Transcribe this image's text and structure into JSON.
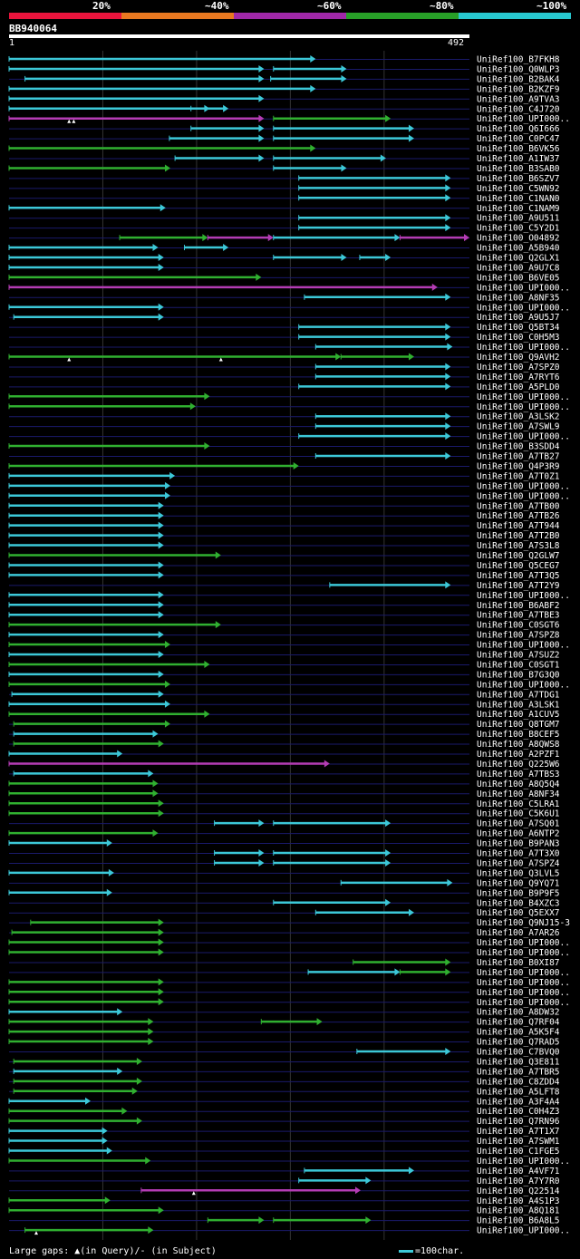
{
  "legend": {
    "segments": [
      {
        "label": "20%",
        "color": "#e8143c"
      },
      {
        "label": "~40%",
        "color": "#e87820"
      },
      {
        "label": "~60%",
        "color": "#a028a8"
      },
      {
        "label": "~80%",
        "color": "#28a028"
      },
      {
        "label": "~100%",
        "color": "#28c8d0"
      }
    ]
  },
  "query": {
    "id": "BB940064",
    "start": "1",
    "end": "492",
    "length": 492
  },
  "colors": {
    "cyan": "#3cc8d8",
    "green": "#30b030",
    "magenta": "#b43cb4",
    "grid": "#333"
  },
  "hits": [
    {
      "name": "UniRef100_B7FKH8",
      "segs": [
        [
          1,
          328,
          "c"
        ]
      ]
    },
    {
      "name": "UniRef100_Q0WLP3",
      "segs": [
        [
          1,
          273,
          "c"
        ],
        [
          283,
          361,
          "c"
        ]
      ]
    },
    {
      "name": "UniRef100_B2BAK4",
      "segs": [
        [
          18,
          273,
          "c"
        ],
        [
          280,
          361,
          "c"
        ]
      ]
    },
    {
      "name": "UniRef100_B2KZF9",
      "segs": [
        [
          1,
          328,
          "c"
        ]
      ]
    },
    {
      "name": "UniRef100_A9TVA3",
      "segs": [
        [
          1,
          273,
          "c"
        ]
      ]
    },
    {
      "name": "UniRef100_C4J720",
      "segs": [
        [
          1,
          215,
          "c"
        ],
        [
          195,
          235,
          "c"
        ]
      ]
    },
    {
      "name": "UniRef100_UPI000..",
      "segs": [
        [
          1,
          273,
          "m"
        ],
        [
          283,
          408,
          "g"
        ]
      ],
      "gaps": [
        65,
        70
      ]
    },
    {
      "name": "UniRef100_Q6I666",
      "segs": [
        [
          195,
          273,
          "c"
        ],
        [
          283,
          433,
          "c"
        ]
      ]
    },
    {
      "name": "UniRef100_C0PC47",
      "segs": [
        [
          172,
          273,
          "c"
        ],
        [
          283,
          433,
          "c"
        ]
      ]
    },
    {
      "name": "UniRef100_B6VK56",
      "segs": [
        [
          1,
          328,
          "g"
        ]
      ]
    },
    {
      "name": "UniRef100_A1IW37",
      "segs": [
        [
          178,
          273,
          "c"
        ],
        [
          283,
          403,
          "c"
        ]
      ]
    },
    {
      "name": "UniRef100_B3SAB0",
      "segs": [
        [
          1,
          173,
          "g"
        ],
        [
          283,
          361,
          "c"
        ]
      ]
    },
    {
      "name": "UniRef100_B6SZV7",
      "segs": [
        [
          310,
          472,
          "c"
        ]
      ]
    },
    {
      "name": "UniRef100_C5WN92",
      "segs": [
        [
          310,
          472,
          "c"
        ]
      ]
    },
    {
      "name": "UniRef100_C1NAN0",
      "segs": [
        [
          310,
          472,
          "c"
        ]
      ]
    },
    {
      "name": "UniRef100_C1NAM9",
      "segs": [
        [
          1,
          168,
          "c"
        ]
      ]
    },
    {
      "name": "UniRef100_A9U511",
      "segs": [
        [
          310,
          472,
          "c"
        ]
      ]
    },
    {
      "name": "UniRef100_C5Y2D1",
      "segs": [
        [
          310,
          472,
          "c"
        ]
      ]
    },
    {
      "name": "UniRef100_O04892",
      "segs": [
        [
          119,
          213,
          "g"
        ],
        [
          213,
          283,
          "m"
        ],
        [
          283,
          418,
          "c"
        ],
        [
          418,
          492,
          "m"
        ]
      ]
    },
    {
      "name": "UniRef100_A5B940",
      "segs": [
        [
          1,
          160,
          "c"
        ],
        [
          188,
          235,
          "c"
        ]
      ]
    },
    {
      "name": "UniRef100_Q2GLX1",
      "segs": [
        [
          1,
          166,
          "c"
        ],
        [
          283,
          361,
          "c"
        ],
        [
          375,
          408,
          "c"
        ]
      ]
    },
    {
      "name": "UniRef100_A9U7C8",
      "segs": [
        [
          1,
          166,
          "c"
        ]
      ]
    },
    {
      "name": "UniRef100_B6VE05",
      "segs": [
        [
          1,
          270,
          "g"
        ]
      ]
    },
    {
      "name": "UniRef100_UPI000..",
      "segs": [
        [
          1,
          458,
          "m"
        ]
      ]
    },
    {
      "name": "UniRef100_A8NF35",
      "segs": [
        [
          316,
          472,
          "c"
        ]
      ]
    },
    {
      "name": "UniRef100_UPI000..",
      "segs": [
        [
          1,
          166,
          "c"
        ]
      ]
    },
    {
      "name": "UniRef100_A9U5J7",
      "segs": [
        [
          6,
          166,
          "c"
        ]
      ]
    },
    {
      "name": "UniRef100_Q5BT34",
      "segs": [
        [
          310,
          472,
          "c"
        ]
      ]
    },
    {
      "name": "UniRef100_C0H5M3",
      "segs": [
        [
          310,
          472,
          "c"
        ]
      ]
    },
    {
      "name": "UniRef100_UPI000..",
      "segs": [
        [
          328,
          474,
          "c"
        ]
      ]
    },
    {
      "name": "UniRef100_Q9AVH2",
      "segs": [
        [
          1,
          355,
          "g"
        ],
        [
          355,
          433,
          "g"
        ]
      ],
      "gaps": [
        65,
        227
      ]
    },
    {
      "name": "UniRef100_A7SPZ0",
      "segs": [
        [
          328,
          472,
          "c"
        ]
      ]
    },
    {
      "name": "UniRef100_A7RYT6",
      "segs": [
        [
          328,
          472,
          "c"
        ]
      ]
    },
    {
      "name": "UniRef100_A5PLD0",
      "segs": [
        [
          310,
          472,
          "c"
        ]
      ]
    },
    {
      "name": "UniRef100_UPI000..",
      "segs": [
        [
          1,
          215,
          "g"
        ]
      ]
    },
    {
      "name": "UniRef100_UPI000..",
      "segs": [
        [
          1,
          200,
          "g"
        ]
      ]
    },
    {
      "name": "UniRef100_A3LSK2",
      "segs": [
        [
          328,
          472,
          "c"
        ]
      ]
    },
    {
      "name": "UniRef100_A7SWL9",
      "segs": [
        [
          328,
          472,
          "c"
        ]
      ]
    },
    {
      "name": "UniRef100_UPI000..",
      "segs": [
        [
          310,
          472,
          "c"
        ]
      ]
    },
    {
      "name": "UniRef100_B3SDD4",
      "segs": [
        [
          1,
          215,
          "g"
        ]
      ]
    },
    {
      "name": "UniRef100_A7TB27",
      "segs": [
        [
          328,
          472,
          "c"
        ]
      ]
    },
    {
      "name": "UniRef100_Q4P3R9",
      "segs": [
        [
          1,
          310,
          "g"
        ]
      ]
    },
    {
      "name": "UniRef100_A7T0Z1",
      "segs": [
        [
          1,
          178,
          "c"
        ]
      ]
    },
    {
      "name": "UniRef100_UPI000..",
      "segs": [
        [
          1,
          173,
          "c"
        ]
      ]
    },
    {
      "name": "UniRef100_UPI000..",
      "segs": [
        [
          1,
          173,
          "c"
        ]
      ]
    },
    {
      "name": "UniRef100_A7TB00",
      "segs": [
        [
          1,
          166,
          "c"
        ]
      ]
    },
    {
      "name": "UniRef100_A7TB26",
      "segs": [
        [
          1,
          166,
          "c"
        ]
      ]
    },
    {
      "name": "UniRef100_A7T944",
      "segs": [
        [
          1,
          166,
          "c"
        ]
      ]
    },
    {
      "name": "UniRef100_A7T2B0",
      "segs": [
        [
          1,
          166,
          "c"
        ]
      ]
    },
    {
      "name": "UniRef100_A7S3L8",
      "segs": [
        [
          1,
          166,
          "c"
        ]
      ]
    },
    {
      "name": "UniRef100_Q2GLW7",
      "segs": [
        [
          1,
          227,
          "g"
        ]
      ]
    },
    {
      "name": "UniRef100_Q5CEG7",
      "segs": [
        [
          1,
          166,
          "c"
        ]
      ]
    },
    {
      "name": "UniRef100_A7T3Q5",
      "segs": [
        [
          1,
          166,
          "c"
        ]
      ]
    },
    {
      "name": "UniRef100_A7T2Y9",
      "segs": [
        [
          343,
          472,
          "c"
        ]
      ]
    },
    {
      "name": "UniRef100_UPI000..",
      "segs": [
        [
          1,
          166,
          "c"
        ]
      ]
    },
    {
      "name": "UniRef100_B6ABF2",
      "segs": [
        [
          1,
          166,
          "c"
        ]
      ]
    },
    {
      "name": "UniRef100_A7TBE3",
      "segs": [
        [
          1,
          166,
          "c"
        ]
      ]
    },
    {
      "name": "UniRef100_C0SGT6",
      "segs": [
        [
          1,
          227,
          "g"
        ]
      ]
    },
    {
      "name": "UniRef100_A7SPZ8",
      "segs": [
        [
          1,
          166,
          "c"
        ]
      ]
    },
    {
      "name": "UniRef100_UPI000..",
      "segs": [
        [
          1,
          173,
          "g"
        ]
      ]
    },
    {
      "name": "UniRef100_A7SUZ2",
      "segs": [
        [
          1,
          166,
          "c"
        ]
      ]
    },
    {
      "name": "UniRef100_C0SGT1",
      "segs": [
        [
          1,
          215,
          "g"
        ]
      ]
    },
    {
      "name": "UniRef100_B7G3Q0",
      "segs": [
        [
          1,
          166,
          "c"
        ]
      ]
    },
    {
      "name": "UniRef100_UPI000..",
      "segs": [
        [
          1,
          173,
          "g"
        ]
      ]
    },
    {
      "name": "UniRef100_A7TDG1",
      "segs": [
        [
          4,
          166,
          "c"
        ]
      ]
    },
    {
      "name": "UniRef100_A3LSK1",
      "segs": [
        [
          1,
          173,
          "c"
        ]
      ]
    },
    {
      "name": "UniRef100_A1CUV5",
      "segs": [
        [
          1,
          215,
          "g"
        ]
      ]
    },
    {
      "name": "UniRef100_Q8TGM7",
      "segs": [
        [
          6,
          173,
          "g"
        ]
      ]
    },
    {
      "name": "UniRef100_B8CEF5",
      "segs": [
        [
          6,
          160,
          "c"
        ]
      ]
    },
    {
      "name": "UniRef100_A8QWS8",
      "segs": [
        [
          6,
          166,
          "g"
        ]
      ]
    },
    {
      "name": "UniRef100_A2PZF1",
      "segs": [
        [
          1,
          122,
          "c"
        ]
      ]
    },
    {
      "name": "UniRef100_Q225W6",
      "segs": [
        [
          1,
          343,
          "m"
        ]
      ]
    },
    {
      "name": "UniRef100_A7TBS3",
      "segs": [
        [
          6,
          155,
          "c"
        ]
      ]
    },
    {
      "name": "UniRef100_A8Q5Q4",
      "segs": [
        [
          1,
          160,
          "g"
        ]
      ]
    },
    {
      "name": "UniRef100_A8NF34",
      "segs": [
        [
          1,
          160,
          "g"
        ]
      ]
    },
    {
      "name": "UniRef100_C5LRA1",
      "segs": [
        [
          1,
          166,
          "g"
        ]
      ]
    },
    {
      "name": "UniRef100_C5K6U1",
      "segs": [
        [
          1,
          166,
          "g"
        ]
      ]
    },
    {
      "name": "UniRef100_A7SQ01",
      "segs": [
        [
          220,
          273,
          "c"
        ],
        [
          283,
          408,
          "c"
        ]
      ]
    },
    {
      "name": "UniRef100_A6NTP2",
      "segs": [
        [
          1,
          160,
          "g"
        ]
      ]
    },
    {
      "name": "UniRef100_B9PAN3",
      "segs": [
        [
          1,
          111,
          "c"
        ]
      ]
    },
    {
      "name": "UniRef100_A7T3X0",
      "segs": [
        [
          220,
          273,
          "c"
        ],
        [
          283,
          408,
          "c"
        ]
      ]
    },
    {
      "name": "UniRef100_A7SPZ4",
      "segs": [
        [
          220,
          273,
          "c"
        ],
        [
          283,
          408,
          "c"
        ]
      ]
    },
    {
      "name": "UniRef100_Q3LVL5",
      "segs": [
        [
          1,
          113,
          "c"
        ]
      ]
    },
    {
      "name": "UniRef100_Q9YQ71",
      "segs": [
        [
          355,
          474,
          "c"
        ]
      ]
    },
    {
      "name": "UniRef100_B9P9F5",
      "segs": [
        [
          1,
          111,
          "c"
        ]
      ]
    },
    {
      "name": "UniRef100_B4XZC3",
      "segs": [
        [
          283,
          408,
          "c"
        ]
      ]
    },
    {
      "name": "UniRef100_Q5EXX7",
      "segs": [
        [
          328,
          433,
          "c"
        ]
      ]
    },
    {
      "name": "UniRef100_Q9NJ15-3",
      "segs": [
        [
          24,
          166,
          "g"
        ]
      ]
    },
    {
      "name": "UniRef100_A7AR26",
      "segs": [
        [
          4,
          166,
          "g"
        ]
      ]
    },
    {
      "name": "UniRef100_UPI000..",
      "segs": [
        [
          1,
          166,
          "g"
        ]
      ]
    },
    {
      "name": "UniRef100_UPI000..",
      "segs": [
        [
          1,
          166,
          "g"
        ]
      ]
    },
    {
      "name": "UniRef100_B0XI87",
      "segs": [
        [
          368,
          472,
          "g"
        ]
      ]
    },
    {
      "name": "UniRef100_UPI000..",
      "segs": [
        [
          320,
          418,
          "c"
        ],
        [
          418,
          472,
          "g"
        ]
      ]
    },
    {
      "name": "UniRef100_UPI000..",
      "segs": [
        [
          1,
          166,
          "g"
        ]
      ]
    },
    {
      "name": "UniRef100_UPI000..",
      "segs": [
        [
          1,
          166,
          "g"
        ]
      ]
    },
    {
      "name": "UniRef100_UPI000..",
      "segs": [
        [
          1,
          166,
          "g"
        ]
      ]
    },
    {
      "name": "UniRef100_A8DW32",
      "segs": [
        [
          1,
          122,
          "c"
        ]
      ]
    },
    {
      "name": "UniRef100_Q7RF04",
      "segs": [
        [
          1,
          155,
          "g"
        ],
        [
          270,
          335,
          "g"
        ]
      ]
    },
    {
      "name": "UniRef100_A5K5F4",
      "segs": [
        [
          1,
          155,
          "g"
        ]
      ]
    },
    {
      "name": "UniRef100_Q7RAD5",
      "segs": [
        [
          1,
          155,
          "g"
        ]
      ]
    },
    {
      "name": "UniRef100_C7BVQ0",
      "segs": [
        [
          372,
          472,
          "c"
        ]
      ]
    },
    {
      "name": "UniRef100_Q3E811",
      "segs": [
        [
          6,
          143,
          "g"
        ]
      ]
    },
    {
      "name": "UniRef100_A7TBR5",
      "segs": [
        [
          6,
          122,
          "c"
        ]
      ]
    },
    {
      "name": "UniRef100_C8ZDD4",
      "segs": [
        [
          6,
          143,
          "g"
        ]
      ]
    },
    {
      "name": "UniRef100_A5LFT8",
      "segs": [
        [
          6,
          138,
          "g"
        ]
      ]
    },
    {
      "name": "UniRef100_A3F4A4",
      "segs": [
        [
          1,
          88,
          "c"
        ]
      ]
    },
    {
      "name": "UniRef100_C0H4Z3",
      "segs": [
        [
          1,
          127,
          "g"
        ]
      ]
    },
    {
      "name": "UniRef100_Q7RN96",
      "segs": [
        [
          1,
          143,
          "g"
        ]
      ]
    },
    {
      "name": "UniRef100_A7T1X7",
      "segs": [
        [
          1,
          106,
          "c"
        ]
      ]
    },
    {
      "name": "UniRef100_A7SWM1",
      "segs": [
        [
          1,
          106,
          "c"
        ]
      ]
    },
    {
      "name": "UniRef100_C1FGE5",
      "segs": [
        [
          1,
          111,
          "c"
        ]
      ]
    },
    {
      "name": "UniRef100_UPI000..",
      "segs": [
        [
          1,
          152,
          "g"
        ]
      ]
    },
    {
      "name": "UniRef100_A4VF71",
      "segs": [
        [
          316,
          433,
          "c"
        ]
      ]
    },
    {
      "name": "UniRef100_A7Y7R0",
      "segs": [
        [
          310,
          387,
          "c"
        ]
      ]
    },
    {
      "name": "UniRef100_Q22514",
      "segs": [
        [
          142,
          376,
          "m"
        ]
      ],
      "gaps": [
        198
      ]
    },
    {
      "name": "UniRef100_A4S1P3",
      "segs": [
        [
          1,
          109,
          "g"
        ]
      ]
    },
    {
      "name": "UniRef100_A8Q181",
      "segs": [
        [
          1,
          166,
          "g"
        ]
      ]
    },
    {
      "name": "UniRef100_B6A8L5",
      "segs": [
        [
          213,
          273,
          "g"
        ],
        [
          283,
          387,
          "g"
        ]
      ]
    },
    {
      "name": "UniRef100_UPI000..",
      "segs": [
        [
          18,
          155,
          "g"
        ]
      ],
      "gaps": [
        30
      ]
    }
  ],
  "footer": {
    "left": "Large gaps: ▲(in Query)/- (in Subject)",
    "right": "=100char."
  }
}
